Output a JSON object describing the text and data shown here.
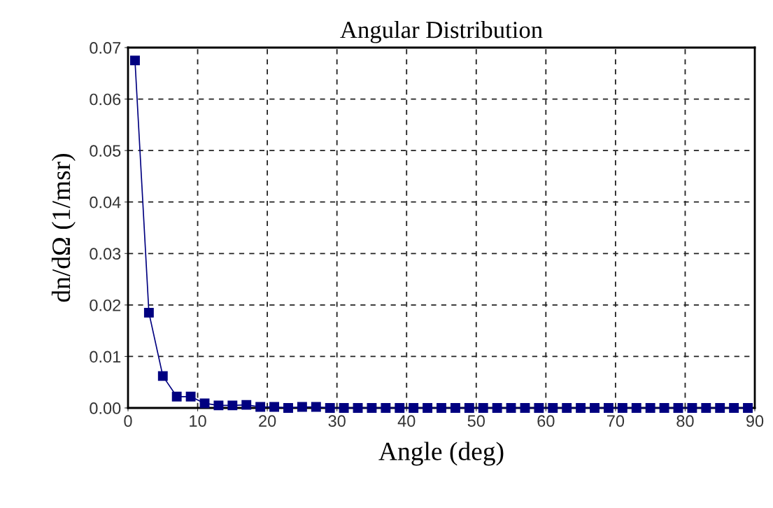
{
  "chart_data": {
    "type": "line",
    "title": "Angular Distribution",
    "xlabel": "Angle (deg)",
    "ylabel": "dn/dΩ (1/msr)",
    "x": [
      1,
      3,
      5,
      7,
      9,
      11,
      13,
      15,
      17,
      19,
      21,
      23,
      25,
      27,
      29,
      31,
      33,
      35,
      37,
      39,
      41,
      43,
      45,
      47,
      49,
      51,
      53,
      55,
      57,
      59,
      61,
      63,
      65,
      67,
      69,
      71,
      73,
      75,
      77,
      79,
      81,
      83,
      85,
      87,
      89
    ],
    "series": [
      {
        "color": "#000080",
        "values": [
          0.0675,
          0.0185,
          0.0062,
          0.0022,
          0.0022,
          0.0009,
          0.0005,
          0.0005,
          0.0006,
          0.0002,
          0.0002,
          0.0,
          0.0002,
          0.0002,
          0,
          0,
          0,
          0,
          0,
          0,
          0,
          0,
          0,
          0,
          0,
          0,
          0,
          0,
          0,
          0,
          0,
          0,
          0,
          0,
          0,
          0,
          0,
          0,
          0,
          0,
          0,
          0,
          0,
          0,
          0
        ]
      }
    ],
    "xlim": [
      0,
      90
    ],
    "xticks": [
      0,
      10,
      20,
      30,
      40,
      50,
      60,
      70,
      80,
      90
    ],
    "ylim": [
      0,
      0.07
    ],
    "yticks": [
      {
        "value": 0,
        "label": "0.00"
      },
      {
        "value": 0.01,
        "label": "0.01"
      },
      {
        "value": 0.02,
        "label": "0.02"
      },
      {
        "value": 0.03,
        "label": "0.03"
      },
      {
        "value": 0.04,
        "label": "0.04"
      },
      {
        "value": 0.05,
        "label": "0.05"
      },
      {
        "value": 0.06,
        "label": "0.06"
      },
      {
        "value": 0.07,
        "label": "0.07"
      }
    ],
    "grid": true,
    "marker": "square",
    "line_style": "solid",
    "legend": false
  }
}
